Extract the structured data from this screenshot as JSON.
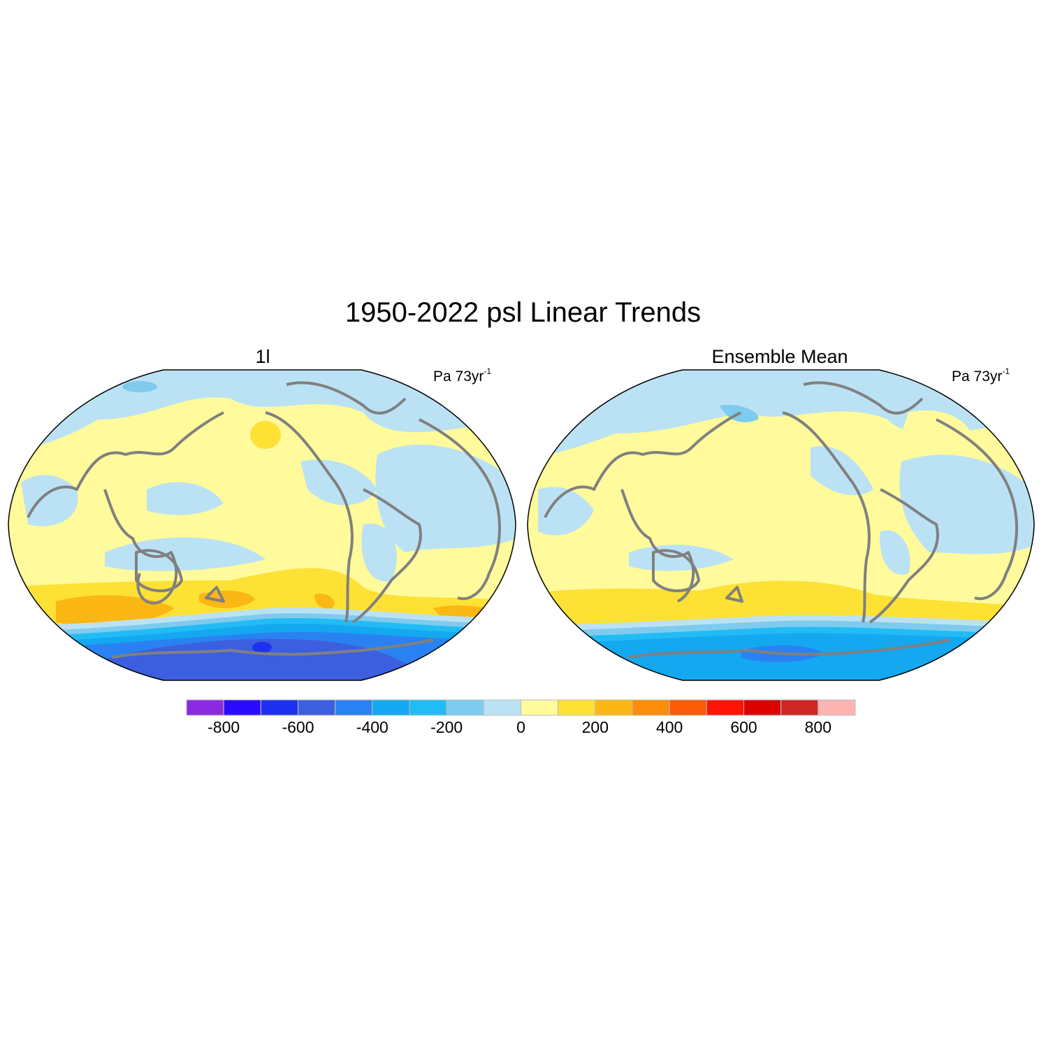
{
  "figure": {
    "title": "1950-2022 psl Linear Trends",
    "panels": [
      {
        "title": "1l",
        "units_text": "Pa 73yr",
        "units_sup": "-1"
      },
      {
        "title": "Ensemble Mean",
        "units_text": "Pa 73yr",
        "units_sup": "-1"
      }
    ]
  },
  "colorbar": {
    "levels": [
      -800,
      -700,
      -600,
      -500,
      -400,
      -300,
      -200,
      -100,
      0,
      100,
      200,
      300,
      400,
      500,
      600,
      700,
      800
    ],
    "tick_labels": [
      "-800",
      "-600",
      "-400",
      "-200",
      "0",
      "200",
      "400",
      "600",
      "800"
    ],
    "colors": [
      "#8a2be2",
      "#2b0bff",
      "#1f31f0",
      "#3c5fe0",
      "#2a82f2",
      "#14a8f0",
      "#22bcf5",
      "#7ecbef",
      "#bbe2f4",
      "#fffa9b",
      "#fde135",
      "#fbb714",
      "#fb8d0b",
      "#fb5a06",
      "#ff1208",
      "#dd0000",
      "#cd2624",
      "#fdb4b2"
    ]
  },
  "colors": {
    "coastline": "#808080",
    "map_border": "#000000"
  }
}
